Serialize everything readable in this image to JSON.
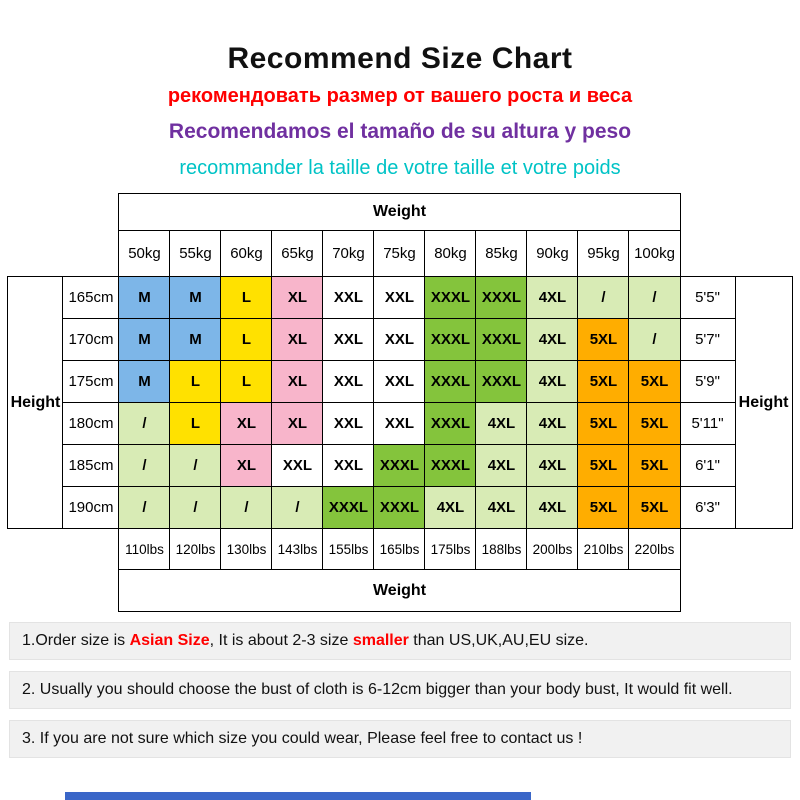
{
  "header": {
    "title": "Recommend Size Chart",
    "subtitle_russian": "рекомендовать размер от вашего роста и веса",
    "subtitle_spanish": "Recomendamos el tamaño de su altura y peso",
    "subtitle_french": "recommander la taille de votre taille et votre poids"
  },
  "chart_data": {
    "type": "table",
    "title": "Recommend Size Chart",
    "weight_header": "Weight",
    "height_header": "Height",
    "weights_kg": [
      "50kg",
      "55kg",
      "60kg",
      "65kg",
      "70kg",
      "75kg",
      "80kg",
      "85kg",
      "90kg",
      "95kg",
      "100kg"
    ],
    "weights_lbs": [
      "110lbs",
      "120lbs",
      "130lbs",
      "143lbs",
      "155lbs",
      "165lbs",
      "175lbs",
      "188lbs",
      "200lbs",
      "210lbs",
      "220lbs"
    ],
    "rows": [
      {
        "height_cm": "165cm",
        "height_ft": "5'5\"",
        "sizes": [
          "M",
          "M",
          "L",
          "XL",
          "XXL",
          "XXL",
          "XXXL",
          "XXXL",
          "4XL",
          "/",
          "/"
        ]
      },
      {
        "height_cm": "170cm",
        "height_ft": "5'7\"",
        "sizes": [
          "M",
          "M",
          "L",
          "XL",
          "XXL",
          "XXL",
          "XXXL",
          "XXXL",
          "4XL",
          "5XL",
          "/"
        ]
      },
      {
        "height_cm": "175cm",
        "height_ft": "5'9\"",
        "sizes": [
          "M",
          "L",
          "L",
          "XL",
          "XXL",
          "XXL",
          "XXXL",
          "XXXL",
          "4XL",
          "5XL",
          "5XL"
        ]
      },
      {
        "height_cm": "180cm",
        "height_ft": "5'11\"",
        "sizes": [
          "/",
          "L",
          "XL",
          "XL",
          "XXL",
          "XXL",
          "XXXL",
          "4XL",
          "4XL",
          "5XL",
          "5XL"
        ]
      },
      {
        "height_cm": "185cm",
        "height_ft": "6'1\"",
        "sizes": [
          "/",
          "/",
          "XL",
          "XXL",
          "XXL",
          "XXXL",
          "XXXL",
          "4XL",
          "4XL",
          "5XL",
          "5XL"
        ]
      },
      {
        "height_cm": "190cm",
        "height_ft": "6'3\"",
        "sizes": [
          "/",
          "/",
          "/",
          "/",
          "XXXL",
          "XXXL",
          "4XL",
          "4XL",
          "4XL",
          "5XL",
          "5XL"
        ]
      }
    ],
    "size_colors": {
      "M": "#7DB6E8",
      "L": "#FFE100",
      "XL": "#F8B5CB",
      "XXL": "#FFFFFF",
      "XXXL": "#84C43C",
      "4XL": "#D8EBB5",
      "5XL": "#FFAD00",
      "/": "#D8EBB5"
    }
  },
  "notes": [
    {
      "segments": [
        {
          "text": "1.Order size is ",
          "highlight": false
        },
        {
          "text": "Asian Size",
          "highlight": true
        },
        {
          "text": ", It is about 2-3 size ",
          "highlight": false
        },
        {
          "text": "smaller",
          "highlight": true
        },
        {
          "text": " than US,UK,AU,EU size.",
          "highlight": false
        }
      ]
    },
    {
      "segments": [
        {
          "text": "2. Usually you should choose the bust of cloth is 6-12cm bigger than your body bust, It would fit well.",
          "highlight": false
        }
      ]
    },
    {
      "segments": [
        {
          "text": "3. If you are not sure which size you could wear, Please feel free to contact us !",
          "highlight": false
        }
      ]
    }
  ],
  "colors": {
    "title": "#111111",
    "russian": "#FF0000",
    "spanish": "#7030A0",
    "french": "#00C3C6",
    "highlight": "#FF0000"
  },
  "footer": {
    "bar_color": "#3A66C8"
  }
}
